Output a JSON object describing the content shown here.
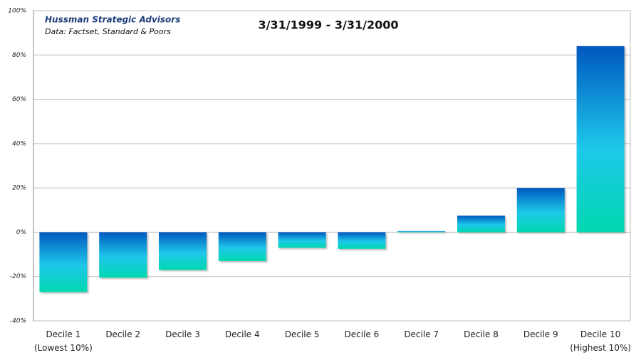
{
  "chart_data": {
    "type": "bar",
    "title": "3/31/1999 - 3/31/2000",
    "source_title": "Hussman Strategic Advisors",
    "source_note": "Data: Factset, Standard & Poors",
    "categories": [
      "Decile 1\n(Lowest 10%)",
      "Decile 2",
      "Decile 3",
      "Decile 4",
      "Decile 5",
      "Decile 6",
      "Decile 7",
      "Decile 8",
      "Decile 9",
      "Decile 10\n(Highest 10%)"
    ],
    "values": [
      -27,
      -20.5,
      -17,
      -13,
      -7,
      -7.5,
      0.5,
      7.5,
      20,
      84
    ],
    "ylim": [
      -40,
      100
    ],
    "yticks": [
      {
        "value": -40,
        "label": "-40%"
      },
      {
        "value": -20,
        "label": "-20%"
      },
      {
        "value": 0,
        "label": "0%"
      },
      {
        "value": 20,
        "label": "20%"
      },
      {
        "value": 40,
        "label": "40%"
      },
      {
        "value": 60,
        "label": "60%"
      },
      {
        "value": 80,
        "label": "80%"
      },
      {
        "value": 100,
        "label": "100%"
      }
    ],
    "grid": true
  }
}
